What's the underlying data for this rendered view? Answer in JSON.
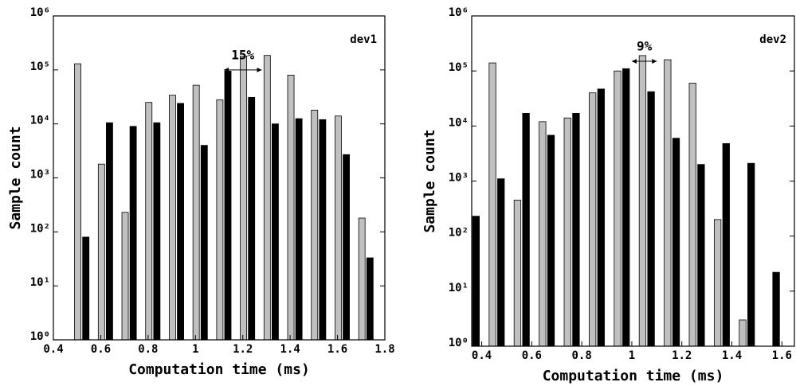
{
  "chart_data": [
    {
      "type": "bar",
      "log_y": true,
      "label": "dev1",
      "xlabel": "Computation time (ms)",
      "ylabel": "Sample count",
      "x": [
        0.52,
        0.62,
        0.72,
        0.82,
        0.92,
        1.02,
        1.12,
        1.22,
        1.32,
        1.42,
        1.52,
        1.62,
        1.72
      ],
      "series": [
        {
          "color": "#c0c0c0",
          "values": [
            130000,
            1800,
            230,
            25000,
            34000,
            52000,
            28000,
            180000,
            185000,
            80000,
            18000,
            14000,
            180
          ]
        },
        {
          "color": "#000000",
          "values": [
            80,
            10500,
            9000,
            10500,
            24000,
            4000,
            95000,
            31000,
            10000,
            12500,
            12000,
            2700,
            33
          ]
        }
      ],
      "xlim": [
        0.4,
        1.8
      ],
      "xticks": [
        0.4,
        0.6,
        0.8,
        1,
        1.2,
        1.4,
        1.6,
        1.8
      ],
      "ylim": [
        1,
        1000000
      ],
      "yticks": [
        {
          "value": 1,
          "label": "10⁰"
        },
        {
          "value": 10,
          "label": "10¹"
        },
        {
          "value": 100,
          "label": "10²"
        },
        {
          "value": 1000,
          "label": "10³"
        },
        {
          "value": 10000,
          "label": "10⁴"
        },
        {
          "value": 100000,
          "label": "10⁵"
        },
        {
          "value": 1000000,
          "label": "10⁶"
        }
      ],
      "annotation": {
        "text": "15%",
        "x": [
          1.12,
          1.28
        ],
        "y": 100000
      }
    },
    {
      "type": "bar",
      "log_y": true,
      "label": "dev2",
      "xlabel": "Computation time (ms)",
      "ylabel": "Sample count",
      "x": [
        0.36,
        0.46,
        0.56,
        0.66,
        0.76,
        0.86,
        0.96,
        1.06,
        1.16,
        1.26,
        1.36,
        1.46,
        1.56
      ],
      "series": [
        {
          "color": "#c0c0c0",
          "values": [
            null,
            140000,
            450,
            12000,
            14000,
            40000,
            100000,
            190000,
            160000,
            60000,
            200,
            3,
            null
          ]
        },
        {
          "color": "#000000",
          "values": [
            230,
            1100,
            17000,
            6800,
            17000,
            47000,
            110000,
            42000,
            6000,
            2000,
            4800,
            2100,
            22
          ]
        }
      ],
      "xlim": [
        0.36,
        1.65
      ],
      "xticks": [
        0.4,
        0.6,
        0.8,
        1,
        1.2,
        1.4,
        1.6
      ],
      "ylim": [
        1,
        1000000
      ],
      "yticks": [
        {
          "value": 1,
          "label": "10⁰"
        },
        {
          "value": 10,
          "label": "10¹"
        },
        {
          "value": 100,
          "label": "10²"
        },
        {
          "value": 1000,
          "label": "10³"
        },
        {
          "value": 10000,
          "label": "10⁴"
        },
        {
          "value": 100000,
          "label": "10⁵"
        },
        {
          "value": 1000000,
          "label": "10⁶"
        }
      ],
      "annotation": {
        "text": "9%",
        "x": [
          1.0,
          1.1
        ],
        "y": 150000
      }
    }
  ]
}
